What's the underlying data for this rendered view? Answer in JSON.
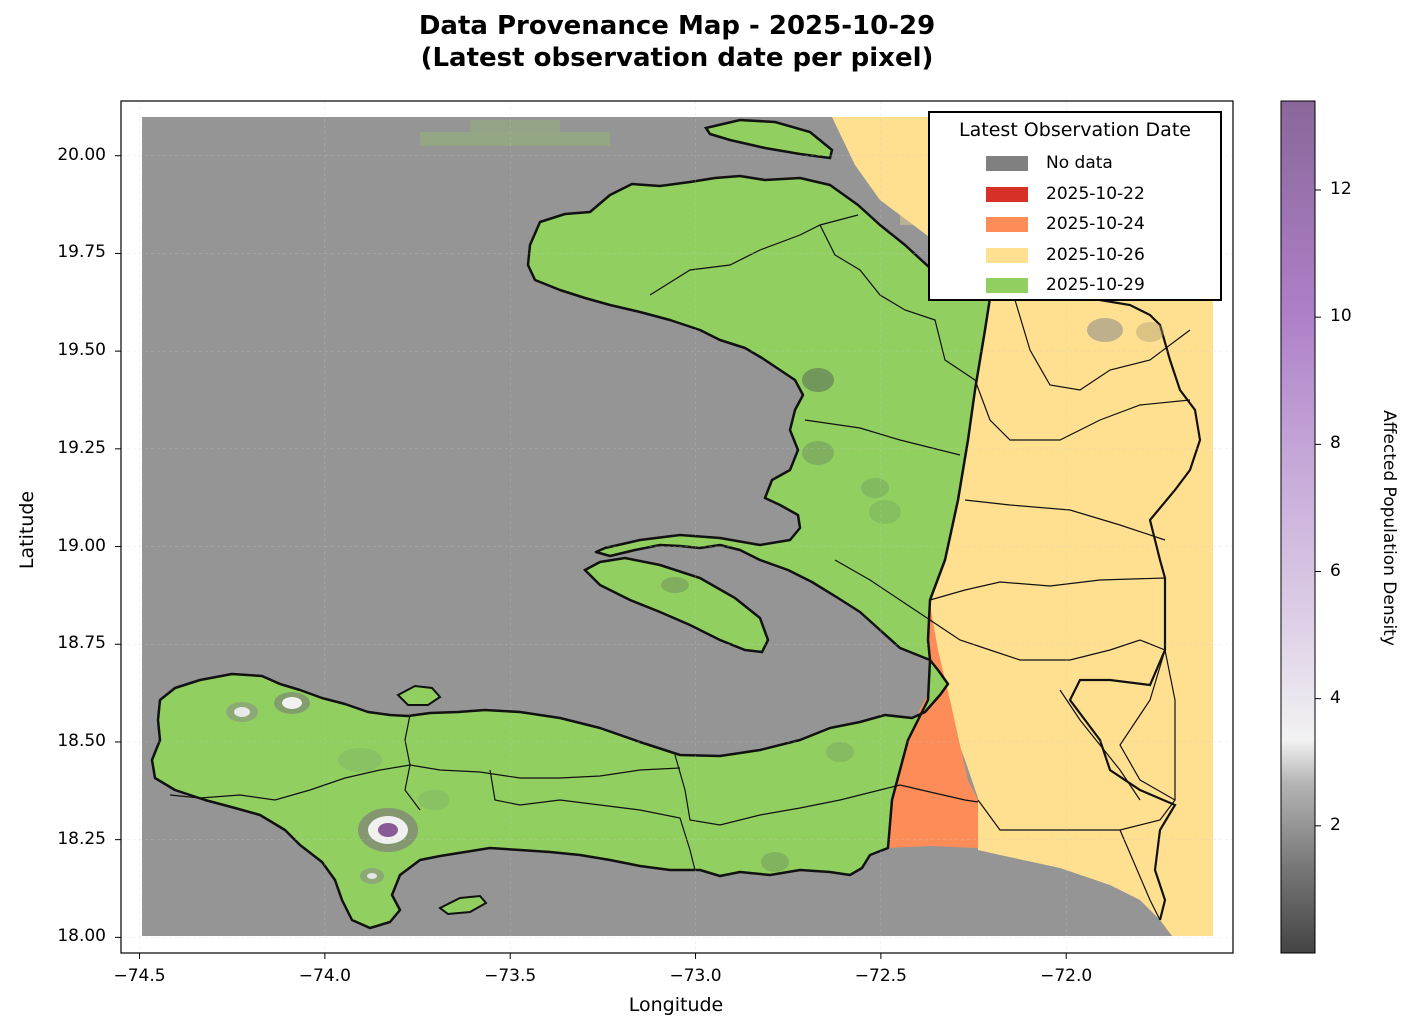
{
  "title_line1": "Data Provenance Map - 2025-10-29",
  "title_line2": "(Latest observation date per pixel)",
  "x_axis": {
    "label": "Longitude",
    "range": [
      -74.55,
      -71.55
    ],
    "ticks": [
      "−74.5",
      "−74.0",
      "−73.5",
      "−73.0",
      "−72.5",
      "−72.0"
    ],
    "tick_values": [
      -74.5,
      -74.0,
      -73.5,
      -73.0,
      -72.5,
      -72.0
    ]
  },
  "y_axis": {
    "label": "Latitude",
    "range": [
      17.96,
      20.14
    ],
    "ticks": [
      "20.00",
      "19.75",
      "19.50",
      "19.25",
      "19.00",
      "18.75",
      "18.50",
      "18.25",
      "18.00"
    ],
    "tick_values": [
      20.0,
      19.75,
      19.5,
      19.25,
      19.0,
      18.75,
      18.5,
      18.25,
      18.0
    ]
  },
  "legend": {
    "title": "Latest Observation Date",
    "entries": [
      {
        "label": "No data",
        "color": "#808080"
      },
      {
        "label": "2025-10-22",
        "color": "#d73027"
      },
      {
        "label": "2025-10-24",
        "color": "#fc8d59"
      },
      {
        "label": "2025-10-26",
        "color": "#fee090"
      },
      {
        "label": "2025-10-29",
        "color": "#91cf60"
      }
    ]
  },
  "colorbar": {
    "label": "Affected Population Density",
    "range": [
      0,
      13.4
    ],
    "ticks": [
      "2",
      "4",
      "6",
      "8",
      "10",
      "12"
    ],
    "tick_values": [
      2,
      4,
      6,
      8,
      10,
      12
    ],
    "colormap_stops": [
      "#444444",
      "#9a9a9a",
      "#f0f0f0",
      "#e8def0",
      "#c5a5d8",
      "#a87ac2",
      "#8a6496"
    ]
  },
  "colors": {
    "no_data": "#959595",
    "date_2025_10_22": "#d73027",
    "date_2025_10_24": "#fc8d59",
    "date_2025_10_26": "#fee090",
    "date_2025_10_29": "#91cf60"
  },
  "grid": true
}
